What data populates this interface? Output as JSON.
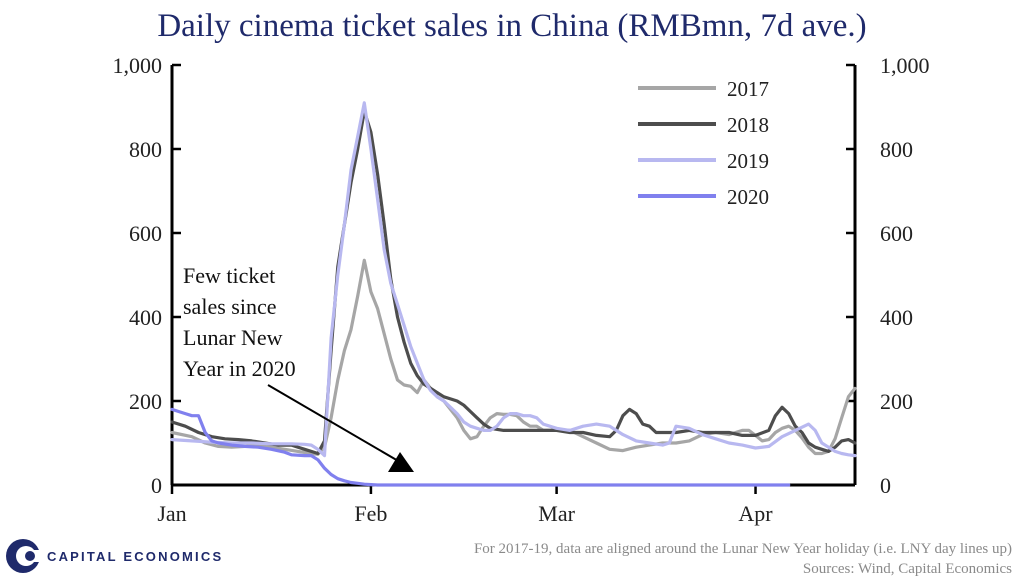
{
  "chart_data": {
    "type": "line",
    "title": "Daily cinema ticket sales in China (RMBmn, 7d ave.)",
    "xlabel": "",
    "ylabel": "",
    "ylim": [
      0,
      1000
    ],
    "xlim_days": [
      0,
      103
    ],
    "y_ticks": [
      "0",
      "200",
      "400",
      "600",
      "800",
      "1,000"
    ],
    "y_tick_values": [
      0,
      200,
      400,
      600,
      800,
      1000
    ],
    "x_ticks": [
      {
        "label": "Jan",
        "day": 0
      },
      {
        "label": "Feb",
        "day": 30
      },
      {
        "label": "Mar",
        "day": 58
      },
      {
        "label": "Apr",
        "day": 88
      }
    ],
    "legend_position": "top-right",
    "series": [
      {
        "name": "2017",
        "color": "#a6a6a6",
        "points": [
          [
            0,
            125
          ],
          [
            3,
            115
          ],
          [
            5,
            100
          ],
          [
            7,
            92
          ],
          [
            9,
            90
          ],
          [
            11,
            92
          ],
          [
            13,
            95
          ],
          [
            15,
            90
          ],
          [
            17,
            85
          ],
          [
            19,
            80
          ],
          [
            21,
            75
          ],
          [
            22,
            73
          ],
          [
            23,
            90
          ],
          [
            24,
            160
          ],
          [
            25,
            250
          ],
          [
            26,
            320
          ],
          [
            27,
            370
          ],
          [
            28,
            450
          ],
          [
            29,
            535
          ],
          [
            30,
            460
          ],
          [
            31,
            420
          ],
          [
            32,
            360
          ],
          [
            33,
            300
          ],
          [
            34,
            250
          ],
          [
            35,
            238
          ],
          [
            36,
            235
          ],
          [
            37,
            220
          ],
          [
            38,
            250
          ],
          [
            39,
            230
          ],
          [
            40,
            210
          ],
          [
            41,
            200
          ],
          [
            42,
            180
          ],
          [
            43,
            160
          ],
          [
            44,
            130
          ],
          [
            45,
            110
          ],
          [
            46,
            115
          ],
          [
            47,
            140
          ],
          [
            48,
            160
          ],
          [
            49,
            170
          ],
          [
            50,
            168
          ],
          [
            51,
            168
          ],
          [
            52,
            165
          ],
          [
            53,
            150
          ],
          [
            54,
            140
          ],
          [
            55,
            140
          ],
          [
            56,
            130
          ],
          [
            57,
            130
          ],
          [
            58,
            132
          ],
          [
            60,
            130
          ],
          [
            62,
            115
          ],
          [
            64,
            100
          ],
          [
            66,
            85
          ],
          [
            68,
            82
          ],
          [
            70,
            90
          ],
          [
            72,
            95
          ],
          [
            74,
            100
          ],
          [
            76,
            100
          ],
          [
            78,
            105
          ],
          [
            80,
            120
          ],
          [
            82,
            125
          ],
          [
            84,
            120
          ],
          [
            86,
            130
          ],
          [
            87,
            130
          ],
          [
            88,
            118
          ],
          [
            89,
            105
          ],
          [
            90,
            108
          ],
          [
            91,
            125
          ],
          [
            92,
            135
          ],
          [
            93,
            140
          ],
          [
            94,
            130
          ],
          [
            95,
            112
          ],
          [
            96,
            90
          ],
          [
            97,
            75
          ],
          [
            98,
            75
          ],
          [
            99,
            80
          ],
          [
            100,
            110
          ],
          [
            101,
            160
          ],
          [
            102,
            210
          ],
          [
            103,
            230
          ]
        ]
      },
      {
        "name": "2018",
        "color": "#4d4d4d",
        "points": [
          [
            0,
            150
          ],
          [
            2,
            140
          ],
          [
            4,
            125
          ],
          [
            6,
            115
          ],
          [
            8,
            110
          ],
          [
            10,
            108
          ],
          [
            12,
            105
          ],
          [
            14,
            100
          ],
          [
            16,
            95
          ],
          [
            18,
            95
          ],
          [
            20,
            85
          ],
          [
            21,
            80
          ],
          [
            22,
            75
          ],
          [
            23,
            105
          ],
          [
            24,
            320
          ],
          [
            25,
            520
          ],
          [
            26,
            620
          ],
          [
            27,
            720
          ],
          [
            28,
            800
          ],
          [
            29,
            890
          ],
          [
            30,
            840
          ],
          [
            31,
            740
          ],
          [
            32,
            620
          ],
          [
            33,
            490
          ],
          [
            34,
            400
          ],
          [
            35,
            340
          ],
          [
            36,
            290
          ],
          [
            37,
            260
          ],
          [
            38,
            240
          ],
          [
            39,
            230
          ],
          [
            40,
            220
          ],
          [
            41,
            210
          ],
          [
            42,
            205
          ],
          [
            43,
            200
          ],
          [
            44,
            190
          ],
          [
            45,
            175
          ],
          [
            46,
            160
          ],
          [
            47,
            145
          ],
          [
            48,
            135
          ],
          [
            50,
            130
          ],
          [
            52,
            130
          ],
          [
            54,
            130
          ],
          [
            56,
            130
          ],
          [
            58,
            130
          ],
          [
            60,
            125
          ],
          [
            62,
            125
          ],
          [
            64,
            118
          ],
          [
            66,
            115
          ],
          [
            67,
            130
          ],
          [
            68,
            165
          ],
          [
            69,
            180
          ],
          [
            70,
            170
          ],
          [
            71,
            145
          ],
          [
            72,
            140
          ],
          [
            73,
            125
          ],
          [
            74,
            125
          ],
          [
            76,
            125
          ],
          [
            78,
            130
          ],
          [
            80,
            125
          ],
          [
            82,
            125
          ],
          [
            84,
            125
          ],
          [
            86,
            118
          ],
          [
            88,
            118
          ],
          [
            90,
            130
          ],
          [
            91,
            165
          ],
          [
            92,
            185
          ],
          [
            93,
            170
          ],
          [
            94,
            140
          ],
          [
            95,
            125
          ],
          [
            96,
            100
          ],
          [
            97,
            90
          ],
          [
            98,
            85
          ],
          [
            99,
            80
          ],
          [
            100,
            90
          ],
          [
            101,
            105
          ],
          [
            102,
            108
          ],
          [
            103,
            100
          ]
        ]
      },
      {
        "name": "2019",
        "color": "#b8b8f0",
        "points": [
          [
            0,
            108
          ],
          [
            3,
            105
          ],
          [
            6,
            102
          ],
          [
            9,
            100
          ],
          [
            12,
            100
          ],
          [
            15,
            98
          ],
          [
            18,
            98
          ],
          [
            20,
            97
          ],
          [
            21,
            95
          ],
          [
            22,
            85
          ],
          [
            23,
            70
          ],
          [
            24,
            350
          ],
          [
            25,
            500
          ],
          [
            26,
            620
          ],
          [
            27,
            750
          ],
          [
            28,
            830
          ],
          [
            29,
            910
          ],
          [
            30,
            800
          ],
          [
            31,
            680
          ],
          [
            32,
            560
          ],
          [
            33,
            480
          ],
          [
            34,
            430
          ],
          [
            35,
            380
          ],
          [
            36,
            330
          ],
          [
            37,
            290
          ],
          [
            38,
            250
          ],
          [
            39,
            225
          ],
          [
            40,
            210
          ],
          [
            41,
            200
          ],
          [
            42,
            185
          ],
          [
            43,
            170
          ],
          [
            44,
            150
          ],
          [
            45,
            140
          ],
          [
            46,
            135
          ],
          [
            47,
            130
          ],
          [
            48,
            130
          ],
          [
            49,
            140
          ],
          [
            50,
            160
          ],
          [
            51,
            170
          ],
          [
            52,
            170
          ],
          [
            53,
            165
          ],
          [
            54,
            165
          ],
          [
            55,
            160
          ],
          [
            56,
            145
          ],
          [
            58,
            135
          ],
          [
            60,
            130
          ],
          [
            62,
            140
          ],
          [
            64,
            145
          ],
          [
            66,
            140
          ],
          [
            68,
            120
          ],
          [
            70,
            105
          ],
          [
            72,
            100
          ],
          [
            74,
            95
          ],
          [
            75,
            100
          ],
          [
            76,
            140
          ],
          [
            78,
            135
          ],
          [
            80,
            120
          ],
          [
            82,
            110
          ],
          [
            84,
            100
          ],
          [
            86,
            95
          ],
          [
            88,
            88
          ],
          [
            90,
            92
          ],
          [
            92,
            115
          ],
          [
            94,
            130
          ],
          [
            96,
            145
          ],
          [
            97,
            130
          ],
          [
            98,
            100
          ],
          [
            99,
            90
          ],
          [
            100,
            80
          ],
          [
            101,
            75
          ],
          [
            102,
            72
          ],
          [
            103,
            70
          ]
        ]
      },
      {
        "name": "2020",
        "color": "#8080ee",
        "points": [
          [
            0,
            180
          ],
          [
            1,
            175
          ],
          [
            2,
            170
          ],
          [
            3,
            165
          ],
          [
            4,
            165
          ],
          [
            5,
            125
          ],
          [
            6,
            105
          ],
          [
            7,
            100
          ],
          [
            9,
            95
          ],
          [
            11,
            92
          ],
          [
            13,
            90
          ],
          [
            15,
            85
          ],
          [
            17,
            78
          ],
          [
            18,
            72
          ],
          [
            20,
            70
          ],
          [
            21,
            70
          ],
          [
            22,
            60
          ],
          [
            23,
            40
          ],
          [
            24,
            25
          ],
          [
            25,
            15
          ],
          [
            26,
            10
          ],
          [
            27,
            6
          ],
          [
            28,
            4
          ],
          [
            29,
            2
          ],
          [
            30,
            1
          ],
          [
            31,
            0
          ],
          [
            40,
            0
          ],
          [
            50,
            0
          ],
          [
            60,
            0
          ],
          [
            70,
            0
          ],
          [
            80,
            0
          ],
          [
            90,
            0
          ],
          [
            93,
            0
          ]
        ]
      }
    ],
    "annotation": {
      "lines": [
        "Few ticket",
        "sales since",
        "Lunar New",
        "Year in 2020"
      ]
    },
    "footnote": "For 2017-19, data are aligned around the Lunar New Year holiday (i.e. LNY day lines up)",
    "source": "Sources: Wind, Capital Economics"
  },
  "branding": {
    "logo_text": "CAPITAL ECONOMICS",
    "logo_color": "#1f2a6b"
  }
}
